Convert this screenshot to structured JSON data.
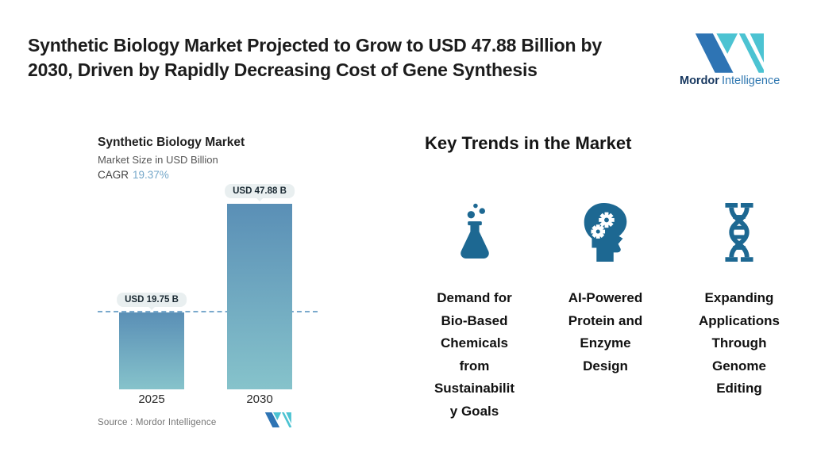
{
  "header": {
    "title": "Synthetic Biology Market Projected to Grow to USD 47.88 Billion by\n2030, Driven by Rapidly Decreasing Cost of Gene Synthesis",
    "logo": {
      "brand_bold": "Mordor",
      "brand_light": "Intelligence"
    }
  },
  "chart_data": {
    "type": "bar",
    "title": "Synthetic Biology Market",
    "subtitle": "Market Size in USD Billion",
    "cagr_label": "CAGR",
    "cagr_value": "19.37%",
    "categories": [
      "2025",
      "2030"
    ],
    "values": [
      19.75,
      47.88
    ],
    "value_labels": [
      "USD 19.75 B",
      "USD 47.88 B"
    ],
    "unit": "USD Billion",
    "xlabel": "",
    "ylabel": "",
    "ylim": [
      0,
      50
    ],
    "grid": false,
    "legend": false,
    "reference_line": {
      "style": "dashed",
      "at_value": 19.75,
      "color": "#7aa9cc"
    },
    "source": "Source :  Mordor Intelligence"
  },
  "key_trends": {
    "title": "Key Trends in the Market",
    "items": [
      {
        "icon": "flask-icon",
        "label": "Demand for\nBio-Based\nChemicals\nfrom\nSustainabilit\ny Goals"
      },
      {
        "icon": "head-gears-icon",
        "label": "AI-Powered\nProtein and\nEnzyme\nDesign"
      },
      {
        "icon": "dna-icon",
        "label": "Expanding\nApplications\nThrough\nGenome\nEditing"
      }
    ]
  },
  "colors": {
    "icon-color": "#1d6892",
    "logo-blue": "#2e74b4",
    "logo-teal": "#4cc3d2",
    "brand-dark": "#16375f",
    "brand-light": "#2f77b0",
    "bar-top": "#5a8fb6",
    "bar-bottom": "#86c3cb",
    "dash": "#7aa9cc",
    "tooltip-bg": "#e9eff0",
    "accent-cagr": "#74a7c9",
    "text-dark": "#1c1c1c",
    "text-gray": "#555555",
    "source-gray": "#737373"
  }
}
